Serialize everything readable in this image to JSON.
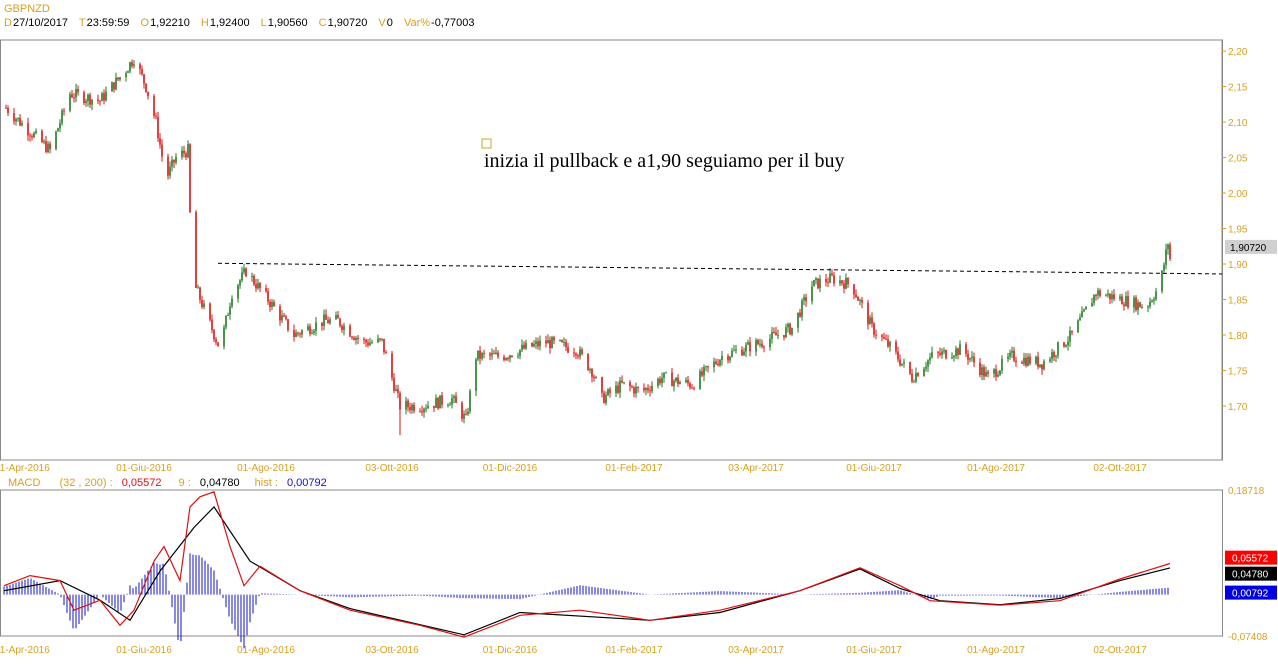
{
  "symbol": "GBPNZD",
  "quote": {
    "D_label": "D",
    "date": "27/10/2017",
    "T_label": "T",
    "time": "23:59:59",
    "O_label": "O",
    "open": "1,92210",
    "H_label": "H",
    "high": "1,92400",
    "L_label": "L",
    "low": "1,90560",
    "C_label": "C",
    "close": "1,90720",
    "V_label": "V",
    "volume": "0",
    "var_label": "Var%",
    "var": "-0,77003"
  },
  "annotation": "inizia il pullback e a1,90 seguiamo per il buy",
  "colors": {
    "up": "#1f7a1f",
    "down": "#e01010",
    "macd": "#e01010",
    "signal": "#000000",
    "hist": "#1010d0",
    "axis": "#d8a020"
  },
  "chart_data": [
    {
      "type": "candlestick",
      "title": "GBPNZD",
      "ylim": [
        1.645,
        2.235
      ],
      "yticks": [
        "2,20",
        "2,15",
        "2,10",
        "2,05",
        "2,00",
        "1,95",
        "1,90",
        "1,85",
        "1,80",
        "1,75",
        "1,70"
      ],
      "xticks": [
        "01-Apr-2016",
        "01-Giu-2016",
        "01-Ago-2016",
        "03-Ott-2016",
        "01-Dic-2016",
        "01-Feb-2017",
        "03-Apr-2017",
        "01-Giu-2017",
        "01-Ago-2017",
        "02-Ott-2017"
      ],
      "last_price_label": "1,90720",
      "close_path": [
        [
          "2016-03-24",
          2.12
        ],
        [
          "2016-03-31",
          2.1
        ],
        [
          "2016-04-15",
          2.06
        ],
        [
          "2016-04-25",
          2.14
        ],
        [
          "2016-05-10",
          2.13
        ],
        [
          "2016-05-22",
          2.17
        ],
        [
          "2016-05-27",
          2.19
        ],
        [
          "2016-06-02",
          2.15
        ],
        [
          "2016-06-07",
          2.1
        ],
        [
          "2016-06-12",
          2.02
        ],
        [
          "2016-06-17",
          2.05
        ],
        [
          "2016-06-23",
          2.06
        ],
        [
          "2016-06-25",
          1.88
        ],
        [
          "2016-07-02",
          1.83
        ],
        [
          "2016-07-09",
          1.78
        ],
        [
          "2016-07-15",
          1.86
        ],
        [
          "2016-07-22",
          1.89
        ],
        [
          "2016-08-02",
          1.85
        ],
        [
          "2016-08-15",
          1.8
        ],
        [
          "2016-08-30",
          1.82
        ],
        [
          "2016-09-06",
          1.82
        ],
        [
          "2016-09-18",
          1.79
        ],
        [
          "2016-09-28",
          1.79
        ],
        [
          "2016-10-07",
          1.7
        ],
        [
          "2016-10-18",
          1.7
        ],
        [
          "2016-11-02",
          1.71
        ],
        [
          "2016-11-09",
          1.68
        ],
        [
          "2016-11-14",
          1.77
        ],
        [
          "2016-11-27",
          1.77
        ],
        [
          "2016-12-07",
          1.78
        ],
        [
          "2016-12-19",
          1.79
        ],
        [
          "2017-01-03",
          1.78
        ],
        [
          "2017-01-11",
          1.75
        ],
        [
          "2017-01-16",
          1.71
        ],
        [
          "2017-01-26",
          1.73
        ],
        [
          "2017-02-05",
          1.72
        ],
        [
          "2017-02-15",
          1.74
        ],
        [
          "2017-03-02",
          1.73
        ],
        [
          "2017-03-17",
          1.77
        ],
        [
          "2017-04-06",
          1.79
        ],
        [
          "2017-04-21",
          1.81
        ],
        [
          "2017-05-01",
          1.87
        ],
        [
          "2017-05-11",
          1.88
        ],
        [
          "2017-05-21",
          1.87
        ],
        [
          "2017-05-31",
          1.81
        ],
        [
          "2017-06-10",
          1.78
        ],
        [
          "2017-06-20",
          1.74
        ],
        [
          "2017-06-30",
          1.77
        ],
        [
          "2017-07-15",
          1.78
        ],
        [
          "2017-07-28",
          1.74
        ],
        [
          "2017-08-09",
          1.77
        ],
        [
          "2017-08-24",
          1.76
        ],
        [
          "2017-09-08",
          1.8
        ],
        [
          "2017-09-20",
          1.86
        ],
        [
          "2017-10-03",
          1.85
        ],
        [
          "2017-10-15",
          1.84
        ],
        [
          "2017-10-22",
          1.87
        ],
        [
          "2017-10-26",
          1.93
        ],
        [
          "2017-10-27",
          1.9072
        ]
      ],
      "trendline": [
        [
          "2016-07-08",
          1.901
        ],
        [
          "2017-11-22",
          1.886
        ]
      ]
    },
    {
      "type": "line",
      "title": "MACD",
      "params": "(32 , 200) :",
      "macd_value": "0,05572",
      "signal_label": "9 :",
      "signal_value": "0,04780",
      "hist_label": "hist :",
      "hist_value": "0,00792",
      "ylim": [
        -0.07408,
        0.18718
      ],
      "yticks": [
        "0,18718",
        "-0,07408"
      ],
      "macd": [
        [
          "2016-03-23",
          0.016
        ],
        [
          "2016-04-05",
          0.034
        ],
        [
          "2016-04-20",
          0.025
        ],
        [
          "2016-04-27",
          -0.028
        ],
        [
          "2016-05-10",
          -0.01
        ],
        [
          "2016-05-20",
          -0.055
        ],
        [
          "2016-05-27",
          -0.028
        ],
        [
          "2016-06-06",
          0.06
        ],
        [
          "2016-06-11",
          0.086
        ],
        [
          "2016-06-19",
          0.025
        ],
        [
          "2016-06-24",
          0.157
        ],
        [
          "2016-06-29",
          0.175
        ],
        [
          "2016-07-06",
          0.184
        ],
        [
          "2016-07-14",
          0.086
        ],
        [
          "2016-07-21",
          0.016
        ],
        [
          "2016-07-29",
          0.051
        ],
        [
          "2016-08-18",
          0.007
        ],
        [
          "2016-09-12",
          -0.028
        ],
        [
          "2016-10-17",
          -0.055
        ],
        [
          "2016-11-08",
          -0.076
        ],
        [
          "2016-12-06",
          -0.037
        ],
        [
          "2017-01-05",
          -0.028
        ],
        [
          "2017-02-09",
          -0.046
        ],
        [
          "2017-03-16",
          -0.028
        ],
        [
          "2017-04-25",
          0.007
        ],
        [
          "2017-05-25",
          0.048
        ],
        [
          "2017-06-14",
          0.016
        ],
        [
          "2017-06-29",
          -0.011
        ],
        [
          "2017-08-03",
          -0.019
        ],
        [
          "2017-09-02",
          -0.011
        ],
        [
          "2017-10-02",
          0.028
        ],
        [
          "2017-10-27",
          0.0557
        ]
      ],
      "signal": [
        [
          "2016-03-23",
          0.007
        ],
        [
          "2016-04-20",
          0.025
        ],
        [
          "2016-05-10",
          -0.01
        ],
        [
          "2016-05-25",
          -0.046
        ],
        [
          "2016-06-09",
          0.042
        ],
        [
          "2016-06-26",
          0.12
        ],
        [
          "2016-07-06",
          0.157
        ],
        [
          "2016-07-24",
          0.06
        ],
        [
          "2016-08-18",
          0.007
        ],
        [
          "2016-09-12",
          -0.025
        ],
        [
          "2016-11-08",
          -0.072
        ],
        [
          "2016-12-06",
          -0.032
        ],
        [
          "2017-02-09",
          -0.046
        ],
        [
          "2017-03-16",
          -0.032
        ],
        [
          "2017-04-25",
          0.007
        ],
        [
          "2017-05-25",
          0.046
        ],
        [
          "2017-06-14",
          0.011
        ],
        [
          "2017-07-04",
          -0.011
        ],
        [
          "2017-08-03",
          -0.018
        ],
        [
          "2017-09-02",
          -0.007
        ],
        [
          "2017-10-02",
          0.025
        ],
        [
          "2017-10-27",
          0.0478
        ]
      ]
    }
  ]
}
